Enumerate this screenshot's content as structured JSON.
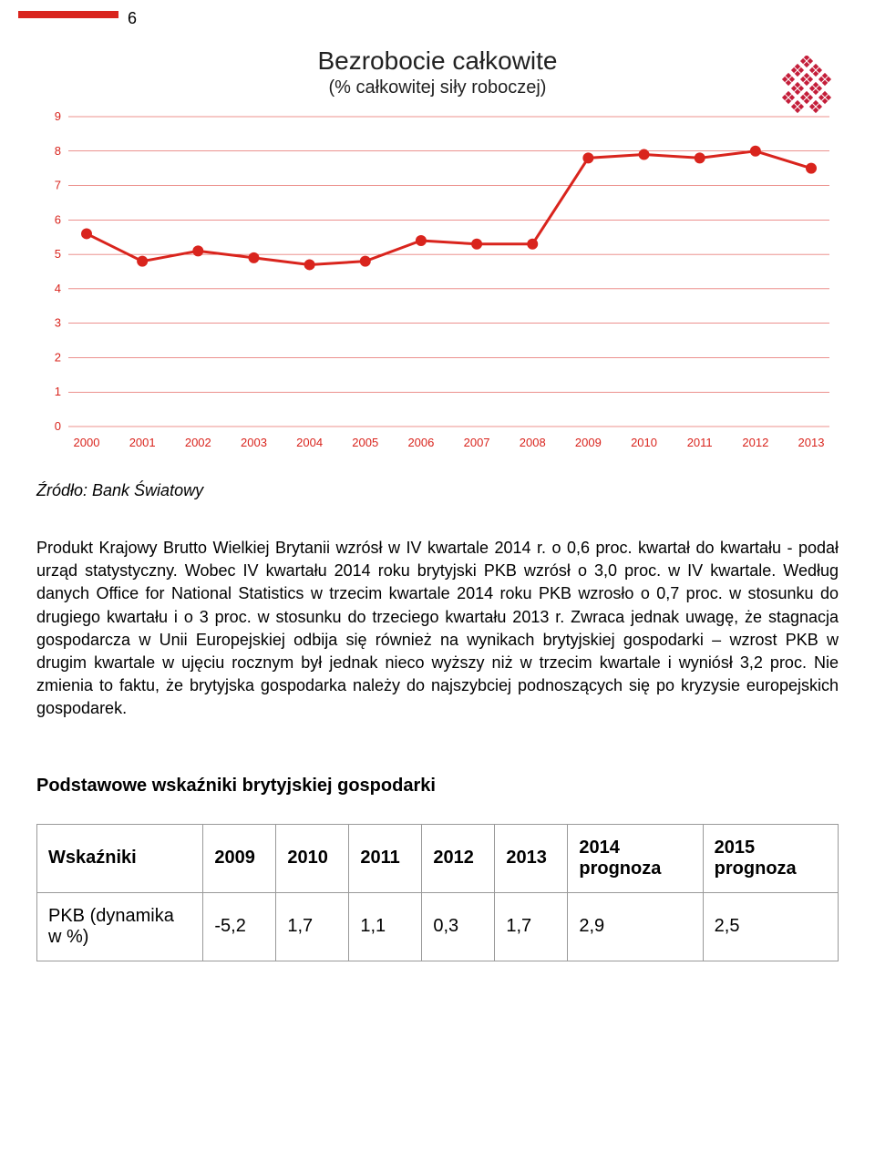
{
  "page_number": "6",
  "chart": {
    "type": "line",
    "title_line1": "Bezrobocie całkowite",
    "title_line2": "(% całkowitej siły roboczej)",
    "title_fontsize_main": 28,
    "title_fontsize_sub": 20,
    "years": [
      "2000",
      "2001",
      "2002",
      "2003",
      "2004",
      "2005",
      "2006",
      "2007",
      "2008",
      "2009",
      "2010",
      "2011",
      "2012",
      "2013"
    ],
    "values": [
      5.6,
      4.8,
      5.1,
      4.9,
      4.7,
      4.8,
      5.4,
      5.3,
      5.3,
      7.8,
      7.9,
      7.8,
      8.0,
      7.5
    ],
    "ylim": [
      0,
      9
    ],
    "ytick_step": 1,
    "line_color": "#d9241d",
    "marker_color": "#d9241d",
    "marker_size": 6,
    "line_width": 3,
    "grid_color": "#d9241d",
    "grid_width": 0.5,
    "axis_label_color": "#d9241d",
    "axis_label_fontsize": 13,
    "background_color": "#ffffff",
    "decor_color": "#c41e3a"
  },
  "source_label": "Źródło: Bank Światowy",
  "body_paragraph": "Produkt Krajowy Brutto Wielkiej Brytanii wzrósł w IV kwartale 2014 r. o 0,6 proc. kwartał do kwartału - podał urząd statystyczny. Wobec IV kwartału 2014 roku brytyjski PKB wzrósł o 3,0 proc. w IV kwartale. Według danych Office for National Statistics w trzecim kwartale 2014 roku PKB wzrosło o 0,7 proc. w stosunku do drugiego kwartału i o 3 proc. w stosunku do trzeciego kwartału 2013 r. Zwraca jednak uwagę, że stagnacja gospodarcza w Unii Europejskiej odbija się również na wynikach brytyjskiej gospodarki – wzrost PKB w drugim kwartale w ujęciu rocznym był jednak nieco wyższy niż w trzecim kwartale i wyniósł 3,2 proc. Nie zmienia to faktu, że brytyjska gospodarka należy do najszybciej podnoszących się po kryzysie europejskich gospodarek.",
  "table_heading": "Podstawowe wskaźniki brytyjskiej gospodarki",
  "table": {
    "columns": [
      "Wskaźniki",
      "2009",
      "2010",
      "2011",
      "2012",
      "2013",
      "2014 prognoza",
      "2015 prognoza"
    ],
    "rows": [
      [
        "PKB (dynamika w %)",
        "-5,2",
        "1,7",
        "1,1",
        "0,3",
        "1,7",
        "2,9",
        "2,5"
      ]
    ]
  }
}
